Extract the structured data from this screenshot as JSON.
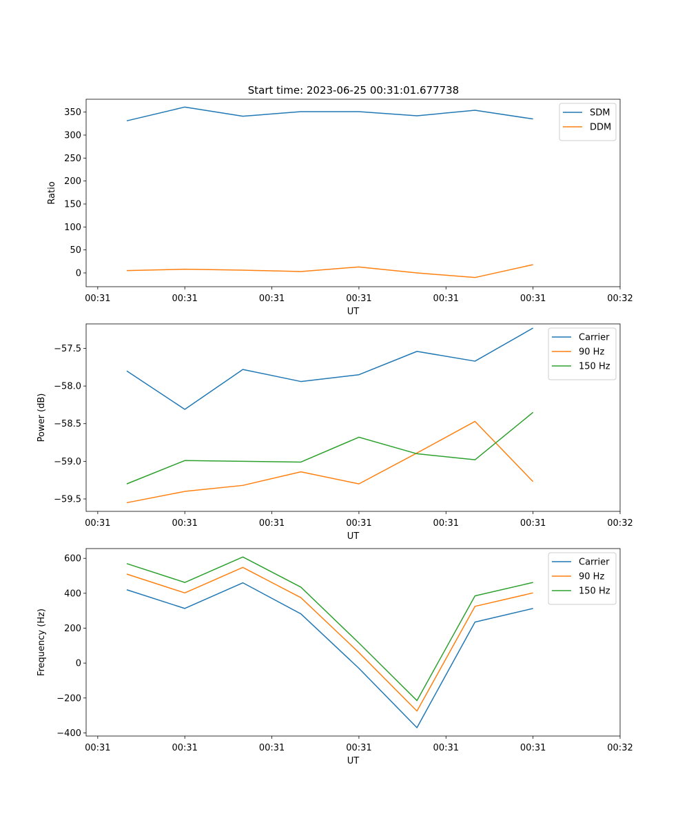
{
  "figure_title": "Start time: 2023-06-25 00:31:01.677738",
  "colors": {
    "c0": "#1f77b4",
    "c1": "#ff7f0e",
    "c2": "#2ca02c",
    "axis": "#000000"
  },
  "chart_data": [
    {
      "type": "line",
      "title": "Start time: 2023-06-25 00:31:01.677738",
      "xlabel": "UT",
      "ylabel": "Ratio",
      "x": [
        1,
        2,
        3,
        4,
        5,
        6,
        7,
        8
      ],
      "x_tick_positions": [
        0.5,
        2,
        3.5,
        5,
        6.5,
        8,
        9.5
      ],
      "x_tick_labels": [
        "00:31",
        "00:31",
        "00:31",
        "00:31",
        "00:31",
        "00:31",
        "00:32"
      ],
      "xlim": [
        0.3,
        9.5
      ],
      "ylim": [
        -30,
        378
      ],
      "y_ticks": [
        0,
        50,
        100,
        150,
        200,
        250,
        300,
        350
      ],
      "y_tick_labels": [
        "0",
        "50",
        "100",
        "150",
        "200",
        "250",
        "300",
        "350"
      ],
      "legend": "top-right",
      "grid": false,
      "series": [
        {
          "name": "SDM",
          "color": "#1f77b4",
          "values": [
            331,
            361,
            341,
            351,
            351,
            342,
            354,
            335
          ]
        },
        {
          "name": "DDM",
          "color": "#ff7f0e",
          "values": [
            5,
            8,
            6,
            3,
            13,
            0,
            -10,
            18
          ]
        }
      ]
    },
    {
      "type": "line",
      "title": "",
      "xlabel": "UT",
      "ylabel": "Power (dB)",
      "x": [
        1,
        2,
        3,
        4,
        5,
        6,
        7,
        8
      ],
      "x_tick_positions": [
        0.5,
        2,
        3.5,
        5,
        6.5,
        8,
        9.5
      ],
      "x_tick_labels": [
        "00:31",
        "00:31",
        "00:31",
        "00:31",
        "00:31",
        "00:31",
        "00:32"
      ],
      "xlim": [
        0.3,
        9.5
      ],
      "ylim": [
        -59.665,
        -57.175
      ],
      "y_ticks": [
        -59.5,
        -59.0,
        -58.5,
        -58.0,
        -57.5
      ],
      "y_tick_labels": [
        "−59.5",
        "−59.0",
        "−58.5",
        "−58.0",
        "−57.5"
      ],
      "legend": "top-right",
      "grid": false,
      "series": [
        {
          "name": "Carrier",
          "color": "#1f77b4",
          "values": [
            -57.8,
            -58.31,
            -57.78,
            -57.94,
            -57.85,
            -57.54,
            -57.67,
            -57.23
          ]
        },
        {
          "name": "90 Hz",
          "color": "#ff7f0e",
          "values": [
            -59.55,
            -59.4,
            -59.32,
            -59.14,
            -59.3,
            -58.89,
            -58.47,
            -59.27
          ]
        },
        {
          "name": "150 Hz",
          "color": "#2ca02c",
          "values": [
            -59.3,
            -58.99,
            -59.0,
            -59.01,
            -58.68,
            -58.9,
            -58.98,
            -58.35
          ]
        }
      ]
    },
    {
      "type": "line",
      "title": "",
      "xlabel": "UT",
      "ylabel": "Frequency (Hz)",
      "x": [
        1,
        2,
        3,
        4,
        5,
        6,
        7,
        8
      ],
      "x_tick_positions": [
        0.5,
        2,
        3.5,
        5,
        6.5,
        8,
        9.5
      ],
      "x_tick_labels": [
        "00:31",
        "00:31",
        "00:31",
        "00:31",
        "00:31",
        "00:31",
        "00:32"
      ],
      "xlim": [
        0.3,
        9.5
      ],
      "ylim": [
        -418,
        656
      ],
      "y_ticks": [
        -400,
        -200,
        0,
        200,
        400,
        600
      ],
      "y_tick_labels": [
        "−400",
        "−200",
        "0",
        "200",
        "400",
        "600"
      ],
      "legend": "top-right",
      "grid": false,
      "series": [
        {
          "name": "Carrier",
          "color": "#1f77b4",
          "values": [
            420,
            313,
            460,
            282,
            -30,
            -370,
            235,
            313
          ]
        },
        {
          "name": "90 Hz",
          "color": "#ff7f0e",
          "values": [
            510,
            402,
            548,
            375,
            60,
            -275,
            325,
            402
          ]
        },
        {
          "name": "150 Hz",
          "color": "#2ca02c",
          "values": [
            570,
            462,
            608,
            435,
            115,
            -215,
            385,
            462
          ]
        }
      ]
    }
  ]
}
